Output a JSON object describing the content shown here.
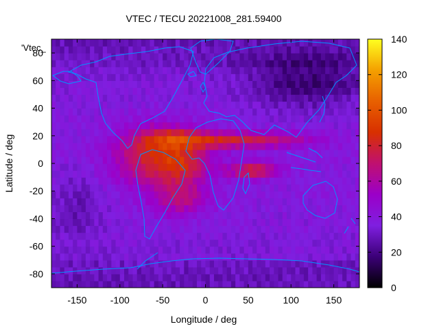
{
  "chart_data": {
    "type": "heatmap",
    "title": "VTEC / TECU 20221008_281.59400",
    "xlabel": "Longitude / deg",
    "ylabel": "Latitude / deg",
    "legend_label": "'Vtec_",
    "xlim": [
      -180,
      180
    ],
    "ylim": [
      -90,
      90
    ],
    "xticks": [
      -150,
      -100,
      -50,
      0,
      50,
      100,
      150
    ],
    "yticks": [
      -80,
      -60,
      -40,
      -20,
      0,
      20,
      40,
      60,
      80
    ],
    "colorbar": {
      "range": [
        0,
        140
      ],
      "ticks": [
        0,
        20,
        40,
        60,
        80,
        100,
        120,
        140
      ],
      "palette": [
        "#000000",
        "#3c0078",
        "#7f1fe0",
        "#9b00c8",
        "#c01070",
        "#d83000",
        "#e86000",
        "#f4a000",
        "#ffff20"
      ]
    },
    "grid_resolution_deg": [
      5,
      5
    ],
    "background_level": 32,
    "features": [
      {
        "name": "equatorial-anomaly-americas-atlantic",
        "center": [
          -55,
          5
        ],
        "spread": [
          48,
          20
        ],
        "peak": 48
      },
      {
        "name": "north-crest",
        "center": [
          -35,
          20
        ],
        "spread": [
          40,
          7
        ],
        "peak": 18
      },
      {
        "name": "south-arc",
        "center": [
          -30,
          -25
        ],
        "spread": [
          32,
          14
        ],
        "peak": 26
      },
      {
        "name": "north-african-branch",
        "center": [
          40,
          17
        ],
        "spread": [
          80,
          6
        ],
        "peak": 40
      },
      {
        "name": "indian-ocean-branch",
        "center": [
          55,
          -5
        ],
        "spread": [
          30,
          6
        ],
        "peak": 40
      },
      {
        "name": "south-atlantic-peak",
        "center": [
          -20,
          0
        ],
        "spread": [
          25,
          14
        ],
        "peak": 18
      },
      {
        "name": "polar-low-north-asia",
        "center": [
          120,
          60
        ],
        "spread": [
          70,
          20
        ],
        "peak": -18
      },
      {
        "name": "polar-low-south-pacific",
        "center": [
          -150,
          -30
        ],
        "spread": [
          30,
          25
        ],
        "peak": -10
      }
    ],
    "coastline_color": "#0096ff"
  }
}
